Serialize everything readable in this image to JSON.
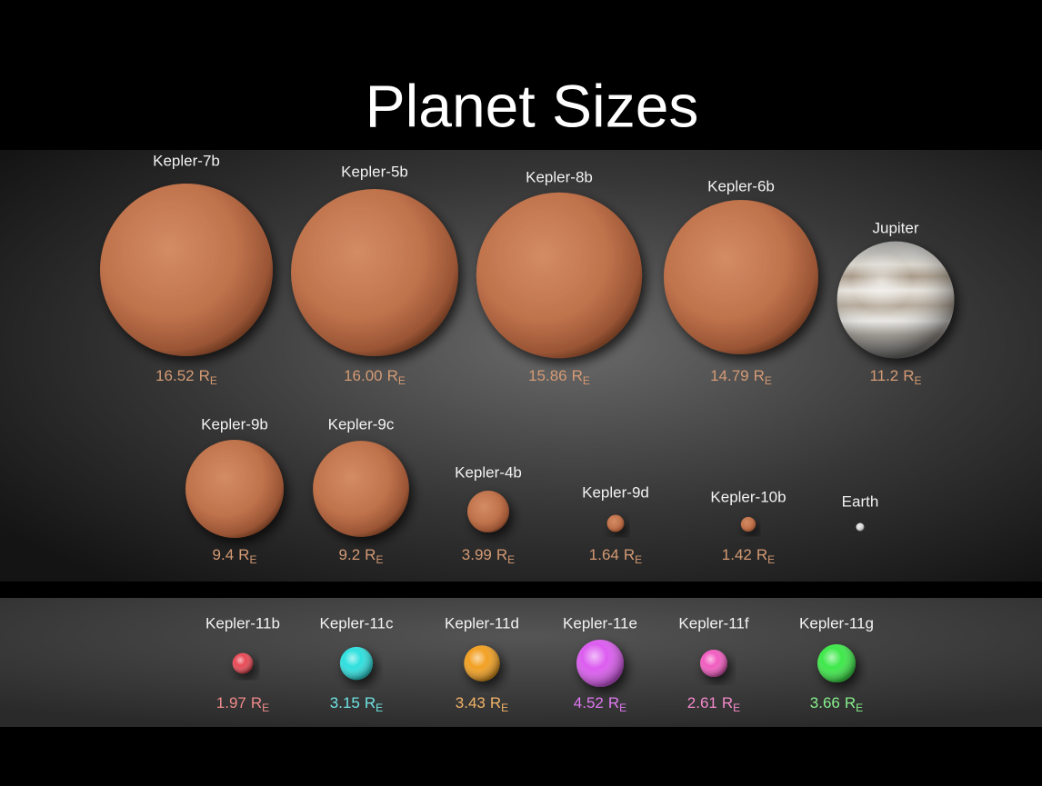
{
  "title": "Planet Sizes",
  "unit": {
    "symbol": "R",
    "subscript": "E"
  },
  "rows": [
    {
      "planets": [
        {
          "name": "Kepler-7b",
          "radius": {
            "value": 16.52,
            "label": "16.52"
          }
        },
        {
          "name": "Kepler-5b",
          "radius": {
            "value": 16.0,
            "label": "16.00"
          }
        },
        {
          "name": "Kepler-8b",
          "radius": {
            "value": 15.86,
            "label": "15.86"
          }
        },
        {
          "name": "Kepler-6b",
          "radius": {
            "value": 14.79,
            "label": "14.79"
          }
        },
        {
          "name": "Jupiter",
          "radius": {
            "value": 11.2,
            "label": "11.2"
          }
        }
      ]
    },
    {
      "planets": [
        {
          "name": "Kepler-9b",
          "radius": {
            "value": 9.4,
            "label": "9.4"
          }
        },
        {
          "name": "Kepler-9c",
          "radius": {
            "value": 9.2,
            "label": "9.2"
          }
        },
        {
          "name": "Kepler-4b",
          "radius": {
            "value": 3.99,
            "label": "3.99"
          }
        },
        {
          "name": "Kepler-9d",
          "radius": {
            "value": 1.64,
            "label": "1.64"
          }
        },
        {
          "name": "Kepler-10b",
          "radius": {
            "value": 1.42,
            "label": "1.42"
          }
        },
        {
          "name": "Earth"
        }
      ]
    },
    {
      "planets": [
        {
          "name": "Kepler-11b",
          "radius": {
            "value": 1.97,
            "label": "1.97"
          }
        },
        {
          "name": "Kepler-11c",
          "radius": {
            "value": 3.15,
            "label": "3.15"
          }
        },
        {
          "name": "Kepler-11d",
          "radius": {
            "value": 3.43,
            "label": "3.43"
          }
        },
        {
          "name": "Kepler-11e",
          "radius": {
            "value": 4.52,
            "label": "4.52"
          }
        },
        {
          "name": "Kepler-11f",
          "radius": {
            "value": 2.61,
            "label": "2.61"
          }
        },
        {
          "name": "Kepler-11g",
          "radius": {
            "value": 3.66,
            "label": "3.66"
          }
        }
      ]
    }
  ]
}
